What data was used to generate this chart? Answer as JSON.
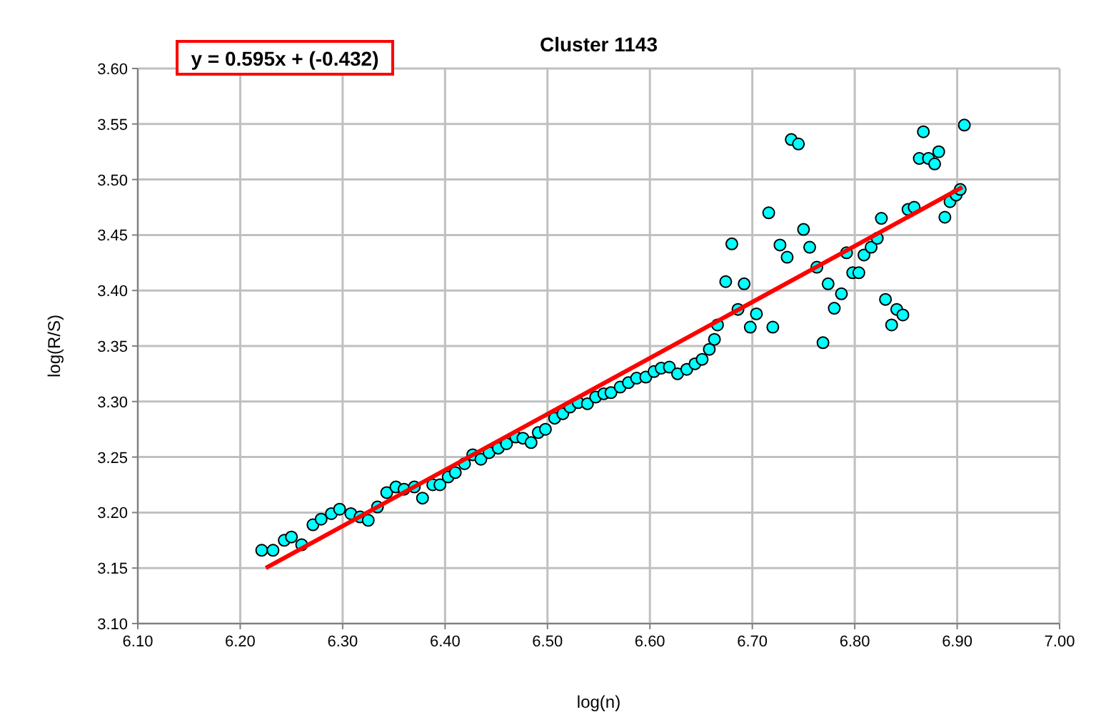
{
  "chart_data": {
    "type": "scatter",
    "title": "Cluster 1143",
    "xlabel": "log(n)",
    "ylabel": "log(R/S)",
    "annotations": [
      "y = 0.595x + (-0.432)"
    ],
    "xlim": [
      6.1,
      7.0
    ],
    "xticks": [
      {
        "value": 6.1,
        "label": "6.10"
      },
      {
        "value": 6.2,
        "label": "6.20"
      },
      {
        "value": 6.3,
        "label": "6.30"
      },
      {
        "value": 6.4,
        "label": "6.40"
      },
      {
        "value": 6.5,
        "label": "6.50"
      },
      {
        "value": 6.6,
        "label": "6.60"
      },
      {
        "value": 6.7,
        "label": "6.70"
      },
      {
        "value": 6.8,
        "label": "6.80"
      },
      {
        "value": 6.9,
        "label": "6.90"
      },
      {
        "value": 7.0,
        "label": "7.00"
      }
    ],
    "ylim": [
      3.1,
      3.6
    ],
    "yticks": [
      {
        "value": 3.1,
        "label": "3.10"
      },
      {
        "value": 3.15,
        "label": "3.15"
      },
      {
        "value": 3.2,
        "label": "3.20"
      },
      {
        "value": 3.25,
        "label": "3.25"
      },
      {
        "value": 3.3,
        "label": "3.30"
      },
      {
        "value": 3.35,
        "label": "3.35"
      },
      {
        "value": 3.4,
        "label": "3.40"
      },
      {
        "value": 3.45,
        "label": "3.45"
      },
      {
        "value": 3.5,
        "label": "3.50"
      },
      {
        "value": 3.55,
        "label": "3.55"
      },
      {
        "value": 3.6,
        "label": "3.60"
      }
    ],
    "grid": true,
    "marker": "circle",
    "series": [
      {
        "color": "#00ffff",
        "x": [
          6.221,
          6.232,
          6.243,
          6.25,
          6.26,
          6.271,
          6.279,
          6.289,
          6.297,
          6.308,
          6.317,
          6.325,
          6.334,
          6.343,
          6.352,
          6.36,
          6.37,
          6.378,
          6.388,
          6.395,
          6.403,
          6.41,
          6.419,
          6.427,
          6.435,
          6.443,
          6.452,
          6.46,
          6.469,
          6.476,
          6.484,
          6.491,
          6.498,
          6.507,
          6.515,
          6.522,
          6.53,
          6.539,
          6.547,
          6.555,
          6.562,
          6.571,
          6.579,
          6.587,
          6.596,
          6.604,
          6.611,
          6.619,
          6.627,
          6.636,
          6.644,
          6.651,
          6.658,
          6.663,
          6.666,
          6.674,
          6.68,
          6.686,
          6.692,
          6.698,
          6.704,
          6.716,
          6.72,
          6.727,
          6.734,
          6.738,
          6.745,
          6.75,
          6.756,
          6.763,
          6.769,
          6.774,
          6.78,
          6.787,
          6.792,
          6.798,
          6.804,
          6.809,
          6.816,
          6.822,
          6.826,
          6.83,
          6.836,
          6.841,
          6.847,
          6.852,
          6.858,
          6.863,
          6.867,
          6.872,
          6.878,
          6.882,
          6.888,
          6.893,
          6.899,
          6.903,
          6.907
        ],
        "values": [
          3.166,
          3.166,
          3.175,
          3.178,
          3.171,
          3.189,
          3.194,
          3.199,
          3.203,
          3.199,
          3.196,
          3.193,
          3.205,
          3.218,
          3.223,
          3.221,
          3.223,
          3.213,
          3.225,
          3.225,
          3.232,
          3.236,
          3.244,
          3.252,
          3.248,
          3.254,
          3.258,
          3.262,
          3.268,
          3.267,
          3.263,
          3.272,
          3.275,
          3.285,
          3.289,
          3.295,
          3.299,
          3.298,
          3.304,
          3.307,
          3.308,
          3.313,
          3.317,
          3.321,
          3.322,
          3.327,
          3.33,
          3.331,
          3.325,
          3.329,
          3.334,
          3.338,
          3.347,
          3.356,
          3.369,
          3.408,
          3.442,
          3.383,
          3.406,
          3.367,
          3.379,
          3.47,
          3.367,
          3.441,
          3.43,
          3.536,
          3.532,
          3.455,
          3.439,
          3.421,
          3.353,
          3.406,
          3.384,
          3.397,
          3.434,
          3.416,
          3.416,
          3.432,
          3.439,
          3.447,
          3.465,
          3.392,
          3.369,
          3.383,
          3.378,
          3.473,
          3.475,
          3.519,
          3.543,
          3.519,
          3.514,
          3.525,
          3.466,
          3.48,
          3.486,
          3.491,
          3.549
        ]
      },
      {
        "type": "line",
        "color": "#ff0000",
        "marker": "none",
        "x": [
          6.225,
          6.905
        ],
        "values": [
          3.15,
          3.493
        ]
      }
    ]
  }
}
